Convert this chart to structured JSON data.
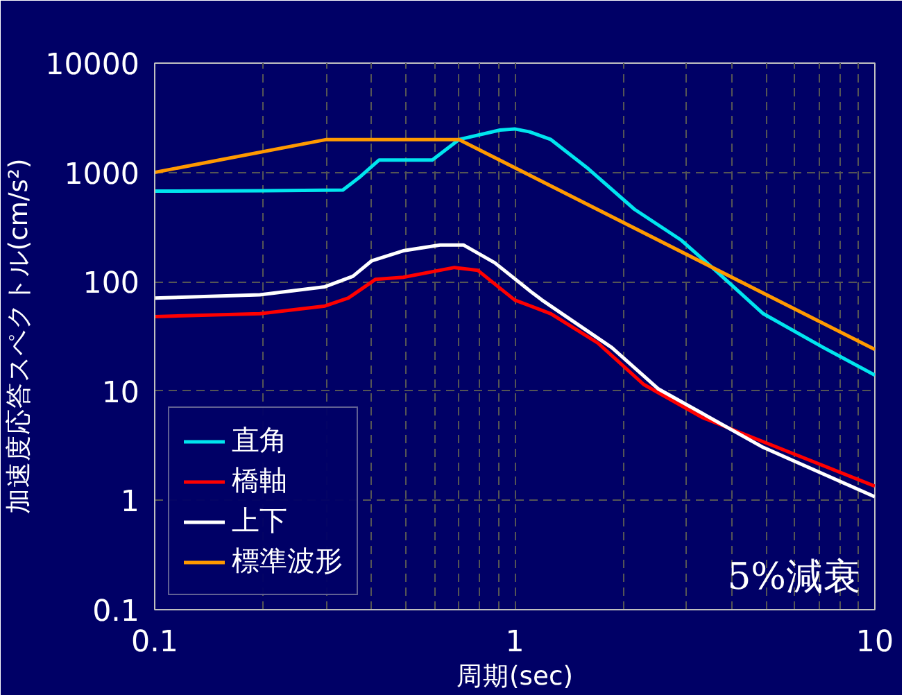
{
  "chart_data": {
    "type": "line",
    "xlabel": "周期(sec)",
    "ylabel": "加速度応答スペクトル(cm/s²)",
    "log": "xy",
    "xlim": [
      0.1,
      10
    ],
    "ylim": [
      0.1,
      10000
    ],
    "xticks": [
      0.1,
      1,
      10
    ],
    "yticks": [
      0.1,
      1,
      10,
      100,
      1000,
      10000
    ],
    "grid": true,
    "legend": "bottom left",
    "line_style": "solid",
    "marker": "none",
    "annotations": [
      "5%減衰"
    ],
    "series": [
      {
        "name": "直角",
        "color": "#00e5ee",
        "x": [
          0.1,
          0.2,
          0.333,
          0.37,
          0.42,
          0.5,
          0.59,
          0.7,
          0.91,
          1.0,
          1.1,
          1.26,
          1.6,
          2.15,
          2.9,
          3.6,
          4.9,
          7.2,
          10
        ],
        "values": [
          675,
          680,
          690,
          900,
          1300,
          1300,
          1300,
          2000,
          2440,
          2500,
          2350,
          2000,
          1080,
          460,
          240,
          128,
          51,
          25,
          14
        ]
      },
      {
        "name": "橋軸",
        "color": "#ff0000",
        "x": [
          0.1,
          0.196,
          0.297,
          0.345,
          0.41,
          0.49,
          0.68,
          0.79,
          1.0,
          1.26,
          1.7,
          2.28,
          3.33,
          10
        ],
        "values": [
          48,
          51,
          60,
          71,
          105,
          110,
          135,
          127,
          68,
          51,
          27.6,
          11.5,
          5.7,
          1.35
        ]
      },
      {
        "name": "上下",
        "color": "#ffffff",
        "x": [
          0.1,
          0.196,
          0.297,
          0.355,
          0.4,
          0.49,
          0.62,
          0.72,
          0.88,
          1.12,
          1.19,
          1.86,
          2.5,
          4.9,
          10
        ],
        "values": [
          71,
          76,
          90,
          112,
          155,
          192,
          217,
          217,
          149,
          79,
          68,
          25,
          10.5,
          3.05,
          1.08
        ]
      },
      {
        "name": "標準波形",
        "color": "#ff9900",
        "x": [
          0.1,
          0.3,
          0.7,
          10
        ],
        "values": [
          1000,
          2000,
          2000,
          24
        ]
      }
    ]
  }
}
